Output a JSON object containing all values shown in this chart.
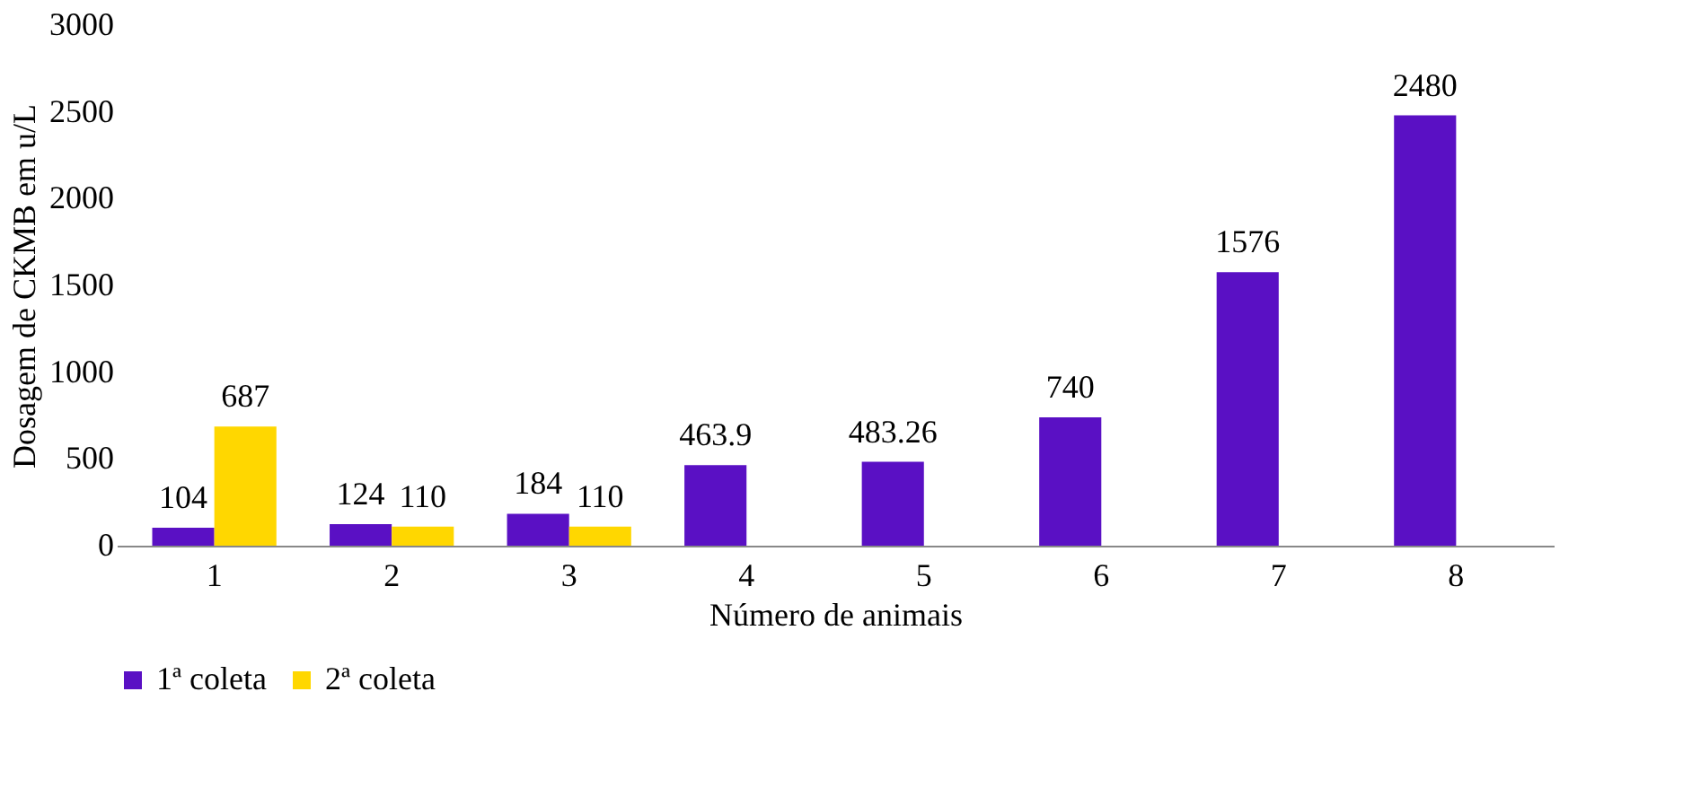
{
  "chart_data": {
    "type": "bar",
    "xlabel": "Número de animais",
    "ylabel": "Dosagem de CKMB em u/L",
    "categories": [
      "1",
      "2",
      "3",
      "4",
      "5",
      "6",
      "7",
      "8"
    ],
    "series": [
      {
        "name": "1ª coleta",
        "color": "#5a10c4",
        "values": [
          104,
          124,
          184,
          463.9,
          483.26,
          740,
          1576,
          2480
        ]
      },
      {
        "name": "2ª coleta",
        "color": "#ffd700",
        "values": [
          687,
          110,
          110,
          null,
          null,
          null,
          null,
          null
        ]
      }
    ],
    "ylim": [
      0,
      3000
    ],
    "yticks": [
      0,
      500,
      1000,
      1500,
      2000,
      2500,
      3000
    ],
    "grid": false,
    "legend": "bottom",
    "data_labels": true
  }
}
